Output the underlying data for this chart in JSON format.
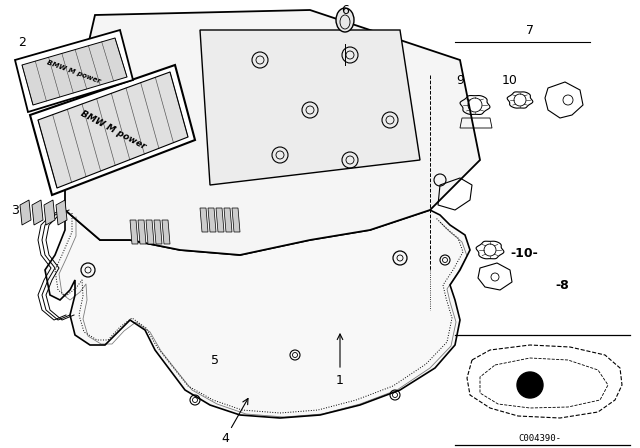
{
  "bg_color": "#ffffff",
  "line_color": "#000000",
  "fig_width": 6.4,
  "fig_height": 4.48,
  "ref_code": "C004390-"
}
